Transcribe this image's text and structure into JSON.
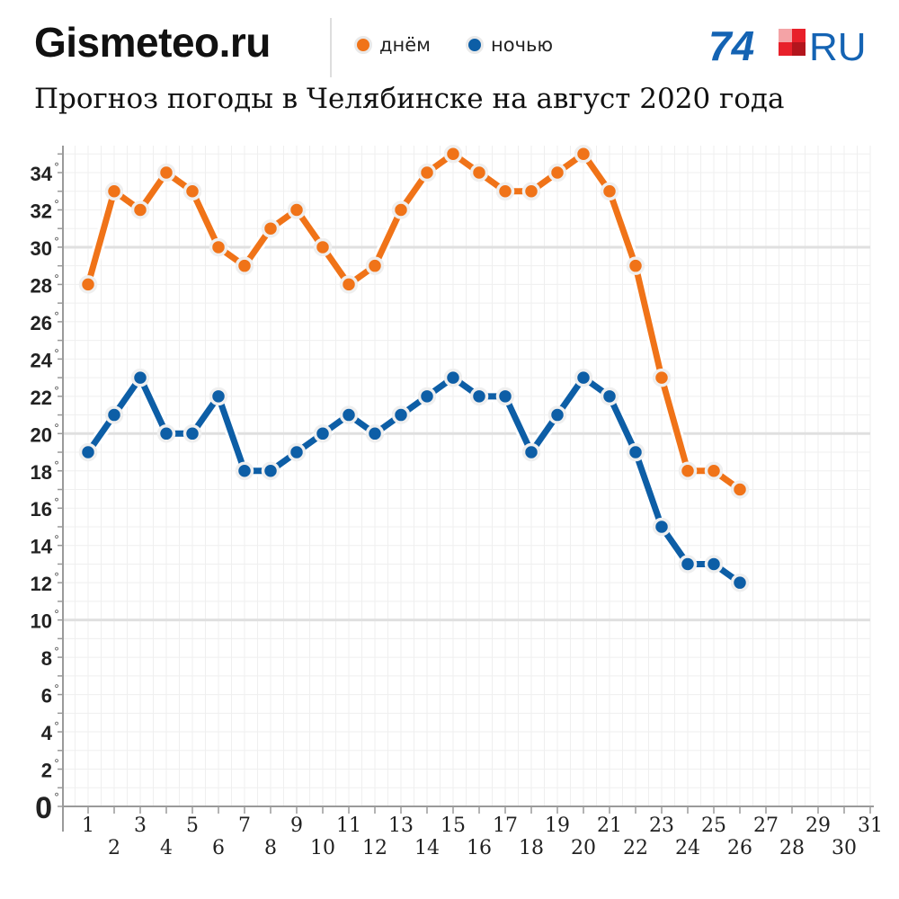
{
  "header": {
    "brand": "Gismeteo.ru",
    "logo_text": "74",
    "logo_suffix": "RU"
  },
  "legend": {
    "day_label": "днём",
    "night_label": "ночью"
  },
  "colors": {
    "day": "#f07318",
    "night": "#0d5ea6",
    "logo_blue": "#1463b3",
    "logo_red": "#e8202a"
  },
  "chart_data": {
    "type": "line",
    "title": "Прогноз погоды в Челябинске на август 2020 года",
    "xlabel": "",
    "ylabel": "",
    "xlim": [
      1,
      31
    ],
    "ylim": [
      0,
      35
    ],
    "x_ticks": [
      1,
      2,
      3,
      4,
      5,
      6,
      7,
      8,
      9,
      10,
      11,
      12,
      13,
      14,
      15,
      16,
      17,
      18,
      19,
      20,
      21,
      22,
      23,
      24,
      25,
      26,
      27,
      28,
      29,
      30,
      31
    ],
    "y_ticks": [
      0,
      2,
      4,
      6,
      8,
      10,
      12,
      14,
      16,
      18,
      20,
      22,
      24,
      26,
      28,
      30,
      32,
      34
    ],
    "y_tick_unit": "°",
    "grid": true,
    "legend_position": "top",
    "x": [
      1,
      2,
      3,
      4,
      5,
      6,
      7,
      8,
      9,
      10,
      11,
      12,
      13,
      14,
      15,
      16,
      17,
      18,
      19,
      20,
      21,
      22,
      23,
      24,
      25,
      26
    ],
    "series": [
      {
        "name": "днём",
        "color": "#f07318",
        "values": [
          28,
          33,
          32,
          34,
          33,
          30,
          29,
          31,
          32,
          30,
          28,
          29,
          32,
          34,
          35,
          34,
          33,
          33,
          34,
          35,
          33,
          29,
          23,
          18,
          18,
          17
        ]
      },
      {
        "name": "ночью",
        "color": "#0d5ea6",
        "values": [
          19,
          21,
          23,
          20,
          20,
          22,
          18,
          18,
          19,
          20,
          21,
          20,
          21,
          22,
          23,
          22,
          22,
          19,
          21,
          23,
          22,
          19,
          15,
          13,
          13,
          12
        ]
      }
    ]
  }
}
